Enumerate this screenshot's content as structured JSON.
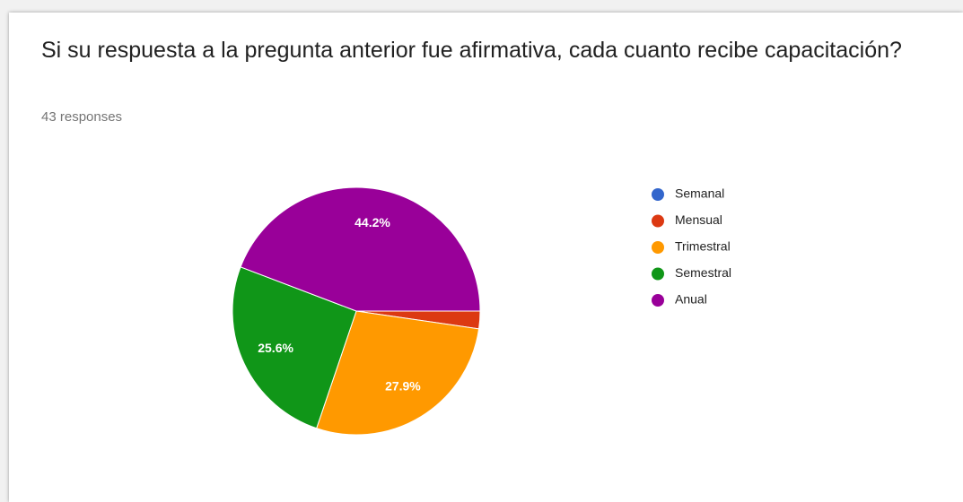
{
  "chart_data": {
    "type": "pie",
    "title": "Si su respuesta a la pregunta anterior fue afirmativa, cada cuanto recibe capacitación?",
    "subtitle": "43 responses",
    "categories": [
      "Semanal",
      "Mensual",
      "Trimestral",
      "Semestral",
      "Anual"
    ],
    "values": [
      0,
      2.3,
      27.9,
      25.6,
      44.2
    ],
    "value_labels": [
      null,
      null,
      "27.9%",
      "25.6%",
      "44.2%"
    ],
    "colors": [
      "#3366cc",
      "#dc3912",
      "#ff9900",
      "#109618",
      "#990099"
    ],
    "legend": "right"
  }
}
